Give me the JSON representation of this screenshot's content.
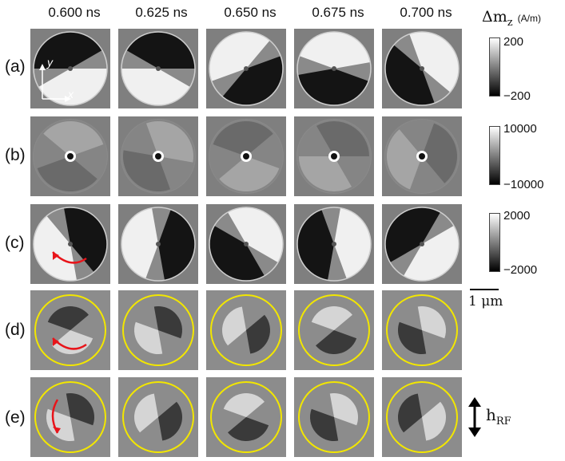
{
  "time_labels": [
    "0.600 ns",
    "0.625 ns",
    "0.650 ns",
    "0.675 ns",
    "0.700 ns"
  ],
  "row_labels": [
    "(a)",
    "(b)",
    "(c)",
    "(d)",
    "(e)"
  ],
  "quantity_label": "Δm",
  "quantity_subscript": "z",
  "unit": "(A/m)",
  "colorbars": [
    {
      "max": "200",
      "min": "−200"
    },
    {
      "max": "10000",
      "min": "−10000"
    },
    {
      "max": "2000",
      "min": "−2000"
    }
  ],
  "axes": {
    "y": "y",
    "x": "x"
  },
  "scale_bar": "1 μm",
  "field_label": "h",
  "field_subscript": "RF",
  "colors": {
    "circle": "#f2e600",
    "arrow": "#e8141a",
    "panel_bg": "#7f7f7f"
  }
}
